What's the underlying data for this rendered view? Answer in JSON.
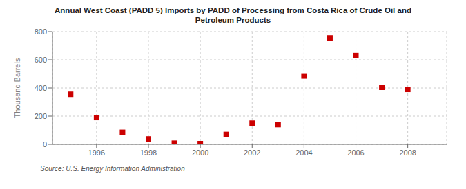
{
  "chart_data": {
    "type": "scatter",
    "title": "Annual West Coast (PADD 5) Imports by PADD of Processing from Costa Rica of Crude Oil and\nPetroleum Products",
    "ylabel": "Thousand Barrels",
    "annotations": [
      "Source: U.S. Energy Information Administration"
    ],
    "x": [
      1995,
      1996,
      1997,
      1998,
      1999,
      2000,
      2001,
      2002,
      2003,
      2004,
      2005,
      2006,
      2007,
      2008
    ],
    "values": [
      355,
      190,
      85,
      38,
      8,
      5,
      70,
      150,
      140,
      485,
      755,
      630,
      405,
      390
    ],
    "color": "#cc0000",
    "marker": "square",
    "xlim": [
      1994.3,
      2009.5
    ],
    "ylim": [
      0,
      800
    ],
    "xticks": [
      1996,
      1998,
      2000,
      2002,
      2004,
      2006,
      2008
    ],
    "yticks": [
      0,
      200,
      400,
      600,
      800
    ],
    "grid": true
  }
}
